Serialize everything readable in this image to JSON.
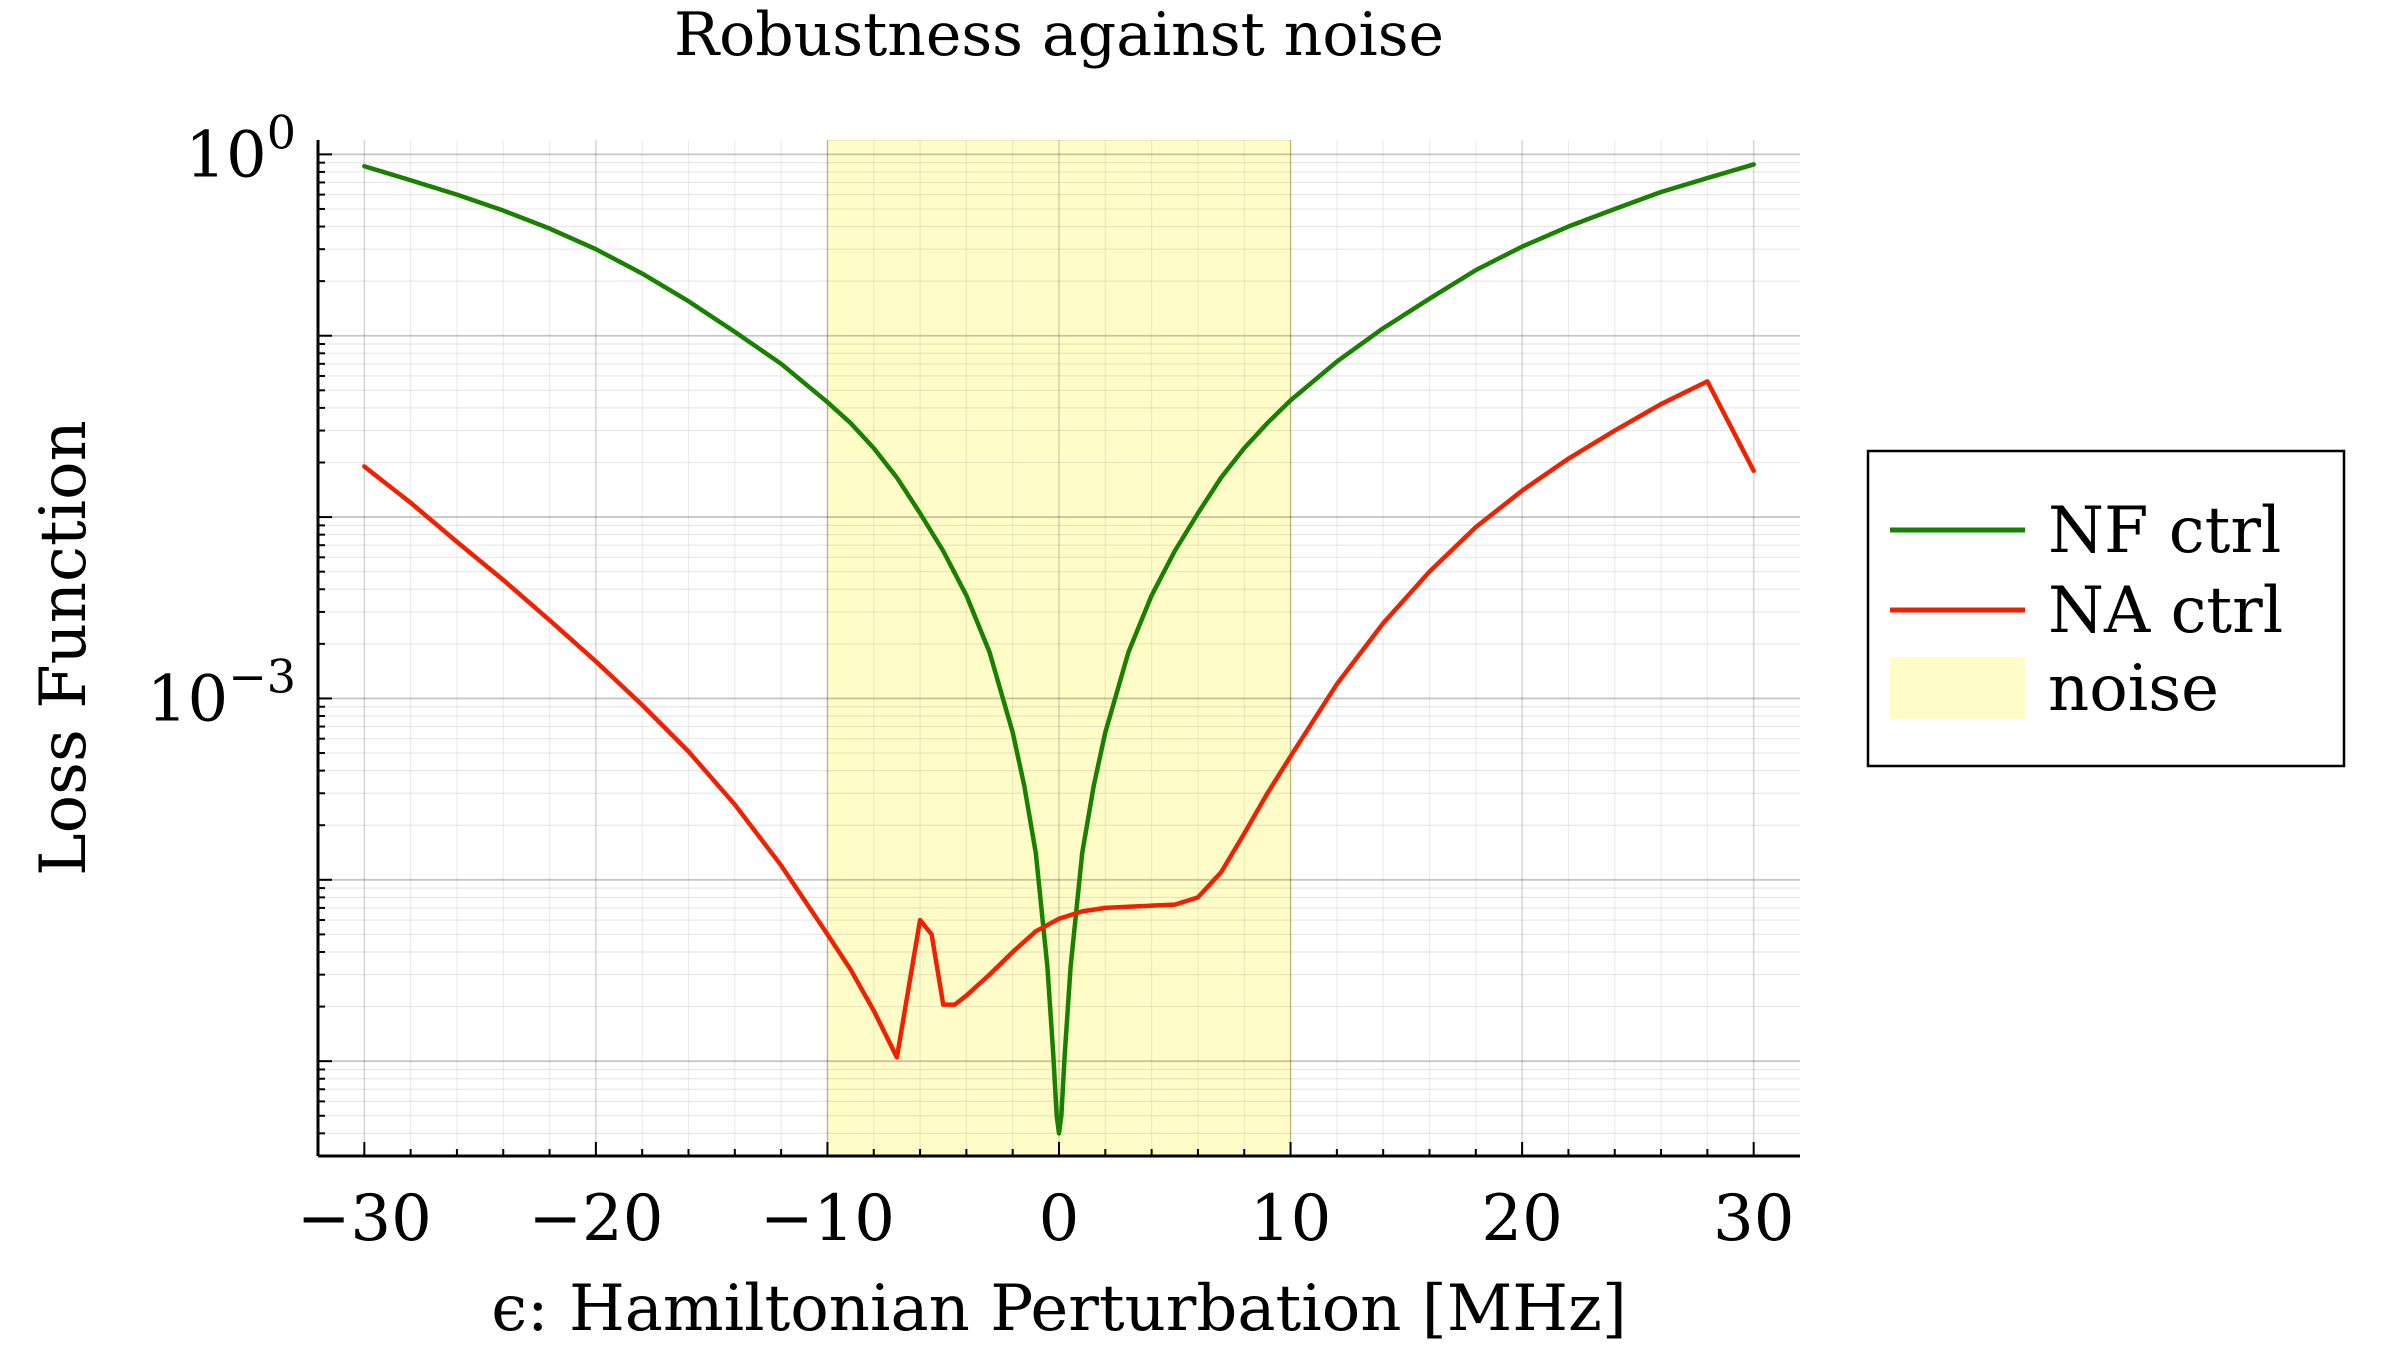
{
  "chart_data": {
    "type": "line",
    "title": "Robustness against noise",
    "xlabel": "ϵ: Hamiltonian Perturbation [MHz]",
    "ylabel": "Loss Function",
    "xlim": [
      -32,
      32
    ],
    "ylim": [
      3e-06,
      1.2
    ],
    "yscale": "log",
    "grid": true,
    "legend_position": "outside-right",
    "x_ticks": [
      {
        "value": -30,
        "label": "−30"
      },
      {
        "value": -20,
        "label": "−20"
      },
      {
        "value": -10,
        "label": "−10"
      },
      {
        "value": 0,
        "label": "0"
      },
      {
        "value": 10,
        "label": "10"
      },
      {
        "value": 20,
        "label": "20"
      },
      {
        "value": 30,
        "label": "30"
      }
    ],
    "y_ticks": [
      {
        "value": 1,
        "base": "10",
        "exp": "0"
      },
      {
        "value": 0.001,
        "base": "10",
        "exp": "−3"
      }
    ],
    "shaded_region": {
      "name": "noise",
      "x": [
        -10,
        10
      ],
      "color": "#fffcc8"
    },
    "series": [
      {
        "name": "NF ctrl",
        "color": "#1a8000",
        "x": [
          -30,
          -28,
          -26,
          -24,
          -22,
          -20,
          -18,
          -16,
          -14,
          -12,
          -10,
          -9,
          -8,
          -7,
          -6,
          -5,
          -4,
          -3,
          -2,
          -1.5,
          -1,
          -0.5,
          -0.25,
          -0.1,
          0,
          0.1,
          0.25,
          0.5,
          1,
          1.5,
          2,
          3,
          4,
          5,
          6,
          7,
          8,
          9,
          10,
          12,
          14,
          16,
          18,
          20,
          22,
          24,
          26,
          28,
          30
        ],
        "y": [
          0.86,
          0.72,
          0.6,
          0.49,
          0.39,
          0.3,
          0.22,
          0.155,
          0.105,
          0.07,
          0.043,
          0.033,
          0.024,
          0.0165,
          0.0105,
          0.0065,
          0.0037,
          0.0018,
          0.00065,
          0.00033,
          0.00014,
          3.3e-05,
          1.1e-05,
          5e-06,
          4e-06,
          5e-06,
          1.1e-05,
          3.3e-05,
          0.00014,
          0.00033,
          0.00065,
          0.0018,
          0.0037,
          0.0065,
          0.0105,
          0.0165,
          0.024,
          0.033,
          0.044,
          0.072,
          0.11,
          0.16,
          0.23,
          0.31,
          0.4,
          0.5,
          0.62,
          0.74,
          0.88
        ]
      },
      {
        "name": "NA ctrl",
        "color": "#ee2200",
        "x": [
          -30,
          -28,
          -26,
          -24,
          -22,
          -20,
          -18,
          -16,
          -14,
          -12,
          -10,
          -9,
          -8,
          -7,
          -6,
          -5.5,
          -5,
          -4.5,
          -4,
          -3,
          -2,
          -1,
          0,
          1,
          2,
          3,
          4,
          5,
          6,
          7,
          8,
          9,
          10,
          12,
          14,
          16,
          18,
          20,
          22,
          24,
          26,
          28,
          30
        ],
        "y": [
          0.019,
          0.012,
          0.0073,
          0.0045,
          0.0027,
          0.0016,
          0.00092,
          0.00051,
          0.00026,
          0.00012,
          5e-05,
          3.2e-05,
          1.9e-05,
          1.05e-05,
          6e-05,
          5e-05,
          2.05e-05,
          2.05e-05,
          2.3e-05,
          3e-05,
          4e-05,
          5.2e-05,
          6.1e-05,
          6.7e-05,
          7e-05,
          7.1e-05,
          7.2e-05,
          7.3e-05,
          8e-05,
          0.00011,
          0.00018,
          0.0003,
          0.00048,
          0.0012,
          0.0026,
          0.005,
          0.0088,
          0.014,
          0.021,
          0.03,
          0.042,
          0.056,
          0.018
        ]
      }
    ]
  }
}
